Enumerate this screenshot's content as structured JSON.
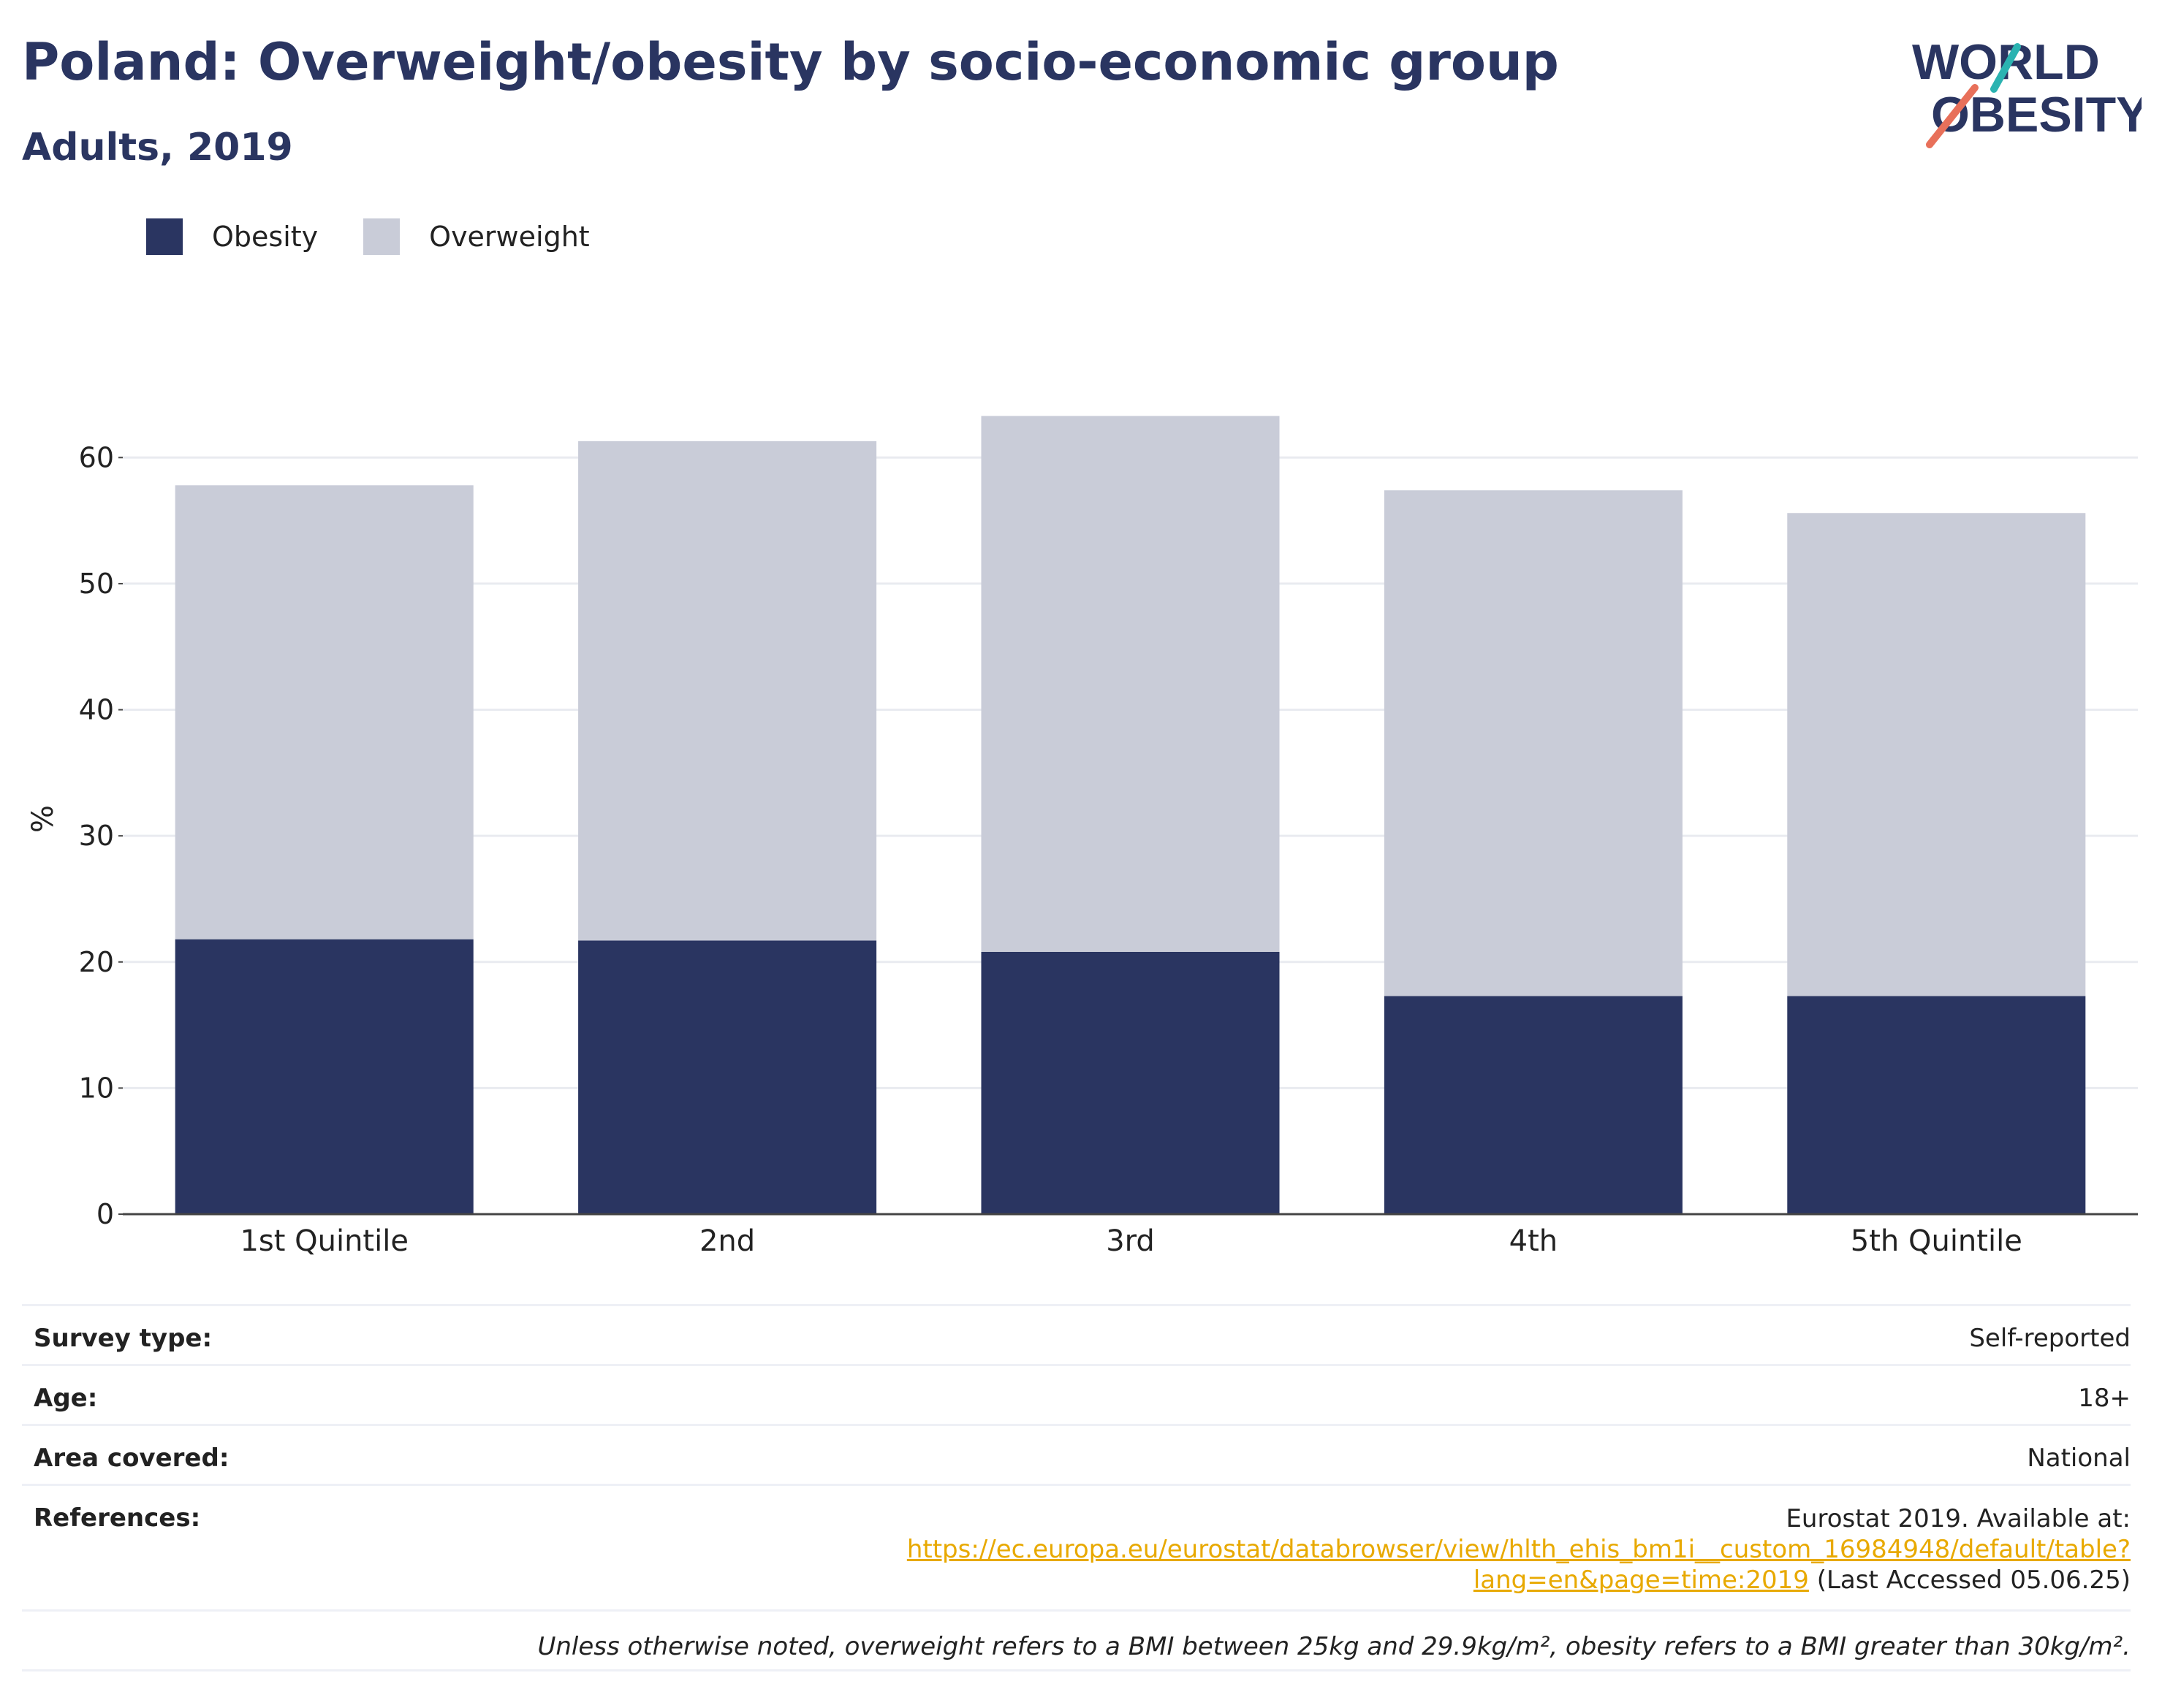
{
  "title": "Poland: Overweight/obesity by socio-economic group",
  "subtitle": "Adults, 2019",
  "logo": {
    "line1": "WORLD",
    "line2": "OBESITY"
  },
  "legend": [
    {
      "label": "Obesity",
      "color": "#2a3561"
    },
    {
      "label": "Overweight",
      "color": "#c9ccd8"
    }
  ],
  "chart_data": {
    "type": "bar",
    "stacked": true,
    "categories": [
      "1st Quintile",
      "2nd",
      "3rd",
      "4th",
      "5th Quintile"
    ],
    "series": [
      {
        "name": "Obesity",
        "values": [
          21.8,
          21.7,
          20.8,
          17.3,
          17.3
        ],
        "color": "#2a3561"
      },
      {
        "name": "Overweight",
        "values": [
          36.0,
          39.6,
          42.5,
          40.1,
          38.3
        ],
        "color": "#c9ccd8"
      }
    ],
    "ylabel": "%",
    "ylim": [
      0,
      65
    ],
    "yticks": [
      0,
      10,
      20,
      30,
      40,
      50,
      60
    ],
    "grid": true,
    "legend_position": "top-left"
  },
  "meta": {
    "survey_type": {
      "label": "Survey type:",
      "value": "Self-reported"
    },
    "age": {
      "label": "Age:",
      "value": "18+"
    },
    "area": {
      "label": "Area covered:",
      "value": "National"
    },
    "references": {
      "label": "References:",
      "text_before": "Eurostat 2019. Available at:",
      "link": "https://ec.europa.eu/eurostat/databrowser/view/hlth_ehis_bm1i__custom_16984948/default/table?lang=en&page=time:2019",
      "text_after": " (Last Accessed 05.06.25)"
    },
    "note": "Unless otherwise noted, overweight refers to a BMI between 25kg and 29.9kg/m², obesity refers to a BMI greater than 30kg/m²."
  }
}
